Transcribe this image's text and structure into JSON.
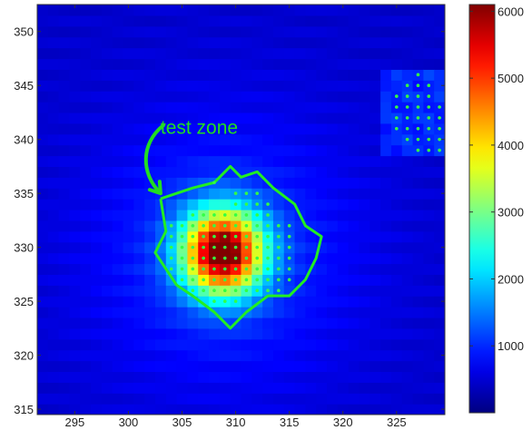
{
  "chart_data": {
    "type": "heatmap",
    "title": "",
    "xlabel": "",
    "ylabel": "",
    "xlim": [
      291.5,
      329.5
    ],
    "ylim": [
      314.5,
      352.5
    ],
    "x_ticks": [
      295,
      300,
      305,
      310,
      315,
      320,
      325
    ],
    "y_ticks": [
      315,
      320,
      325,
      330,
      335,
      340,
      345,
      350
    ],
    "colormap": "jet",
    "colorbar": {
      "range": [
        0,
        6100
      ],
      "ticks": [
        1000,
        2000,
        3000,
        4000,
        5000,
        6000
      ]
    },
    "background_value": 450,
    "hotspot": {
      "center": [
        308.8,
        329.6
      ],
      "peak_value": 6000,
      "sigma": [
        2.6,
        2.7
      ],
      "halo_value": 650,
      "halo_sigma": [
        9,
        9
      ]
    },
    "secondary_patch": {
      "x_range": [
        324,
        329
      ],
      "y_range": [
        339,
        346
      ],
      "value": 1000
    },
    "marked_points": [
      {
        "x": 308,
        "y": 336,
        "count": 1
      },
      {
        "x": 310,
        "y": 335,
        "count": 3
      },
      {
        "x": 310,
        "y": 334,
        "count": 4
      },
      {
        "x": 306,
        "y": 333,
        "count": 8
      },
      {
        "x": 304,
        "y": 332,
        "count": 12
      },
      {
        "x": 304,
        "y": 331,
        "count": 12
      },
      {
        "x": 304,
        "y": 330,
        "count": 12
      },
      {
        "x": 304,
        "y": 329,
        "count": 12
      },
      {
        "x": 304,
        "y": 328,
        "count": 12
      },
      {
        "x": 305,
        "y": 327,
        "count": 11
      },
      {
        "x": 306,
        "y": 326,
        "count": 9
      },
      {
        "x": 308,
        "y": 325,
        "count": 3
      },
      {
        "x": 327,
        "y": 346,
        "count": 1
      },
      {
        "x": 326,
        "y": 345,
        "count": 3
      },
      {
        "x": 325,
        "y": 344,
        "count": 4
      },
      {
        "x": 325,
        "y": 343,
        "count": 5
      },
      {
        "x": 325,
        "y": 342,
        "count": 5
      },
      {
        "x": 325,
        "y": 341,
        "count": 5
      },
      {
        "x": 326,
        "y": 340,
        "count": 4
      },
      {
        "x": 327,
        "y": 339,
        "count": 3
      }
    ],
    "zone_boundary": [
      [
        303,
        334.5
      ],
      [
        306,
        335.5
      ],
      [
        308,
        336
      ],
      [
        309.5,
        337.5
      ],
      [
        310.5,
        336.5
      ],
      [
        312,
        337
      ],
      [
        313.5,
        335.5
      ],
      [
        315.5,
        334
      ],
      [
        316.5,
        332
      ],
      [
        318,
        331
      ],
      [
        317.5,
        329
      ],
      [
        316.5,
        327
      ],
      [
        315,
        325.5
      ],
      [
        313,
        325.5
      ],
      [
        311,
        324
      ],
      [
        309.5,
        322.5
      ],
      [
        308,
        324
      ],
      [
        306,
        325.5
      ],
      [
        304.5,
        326.5
      ],
      [
        303.5,
        328
      ],
      [
        302.5,
        329.5
      ],
      [
        303.5,
        331.5
      ],
      [
        303,
        334.5
      ]
    ],
    "boundary_color": "#22ee22",
    "point_color": "#33ff44",
    "annotation": {
      "text": "test zone",
      "color": "#22dd22",
      "text_at": [
        303,
        340.5
      ],
      "arrow_tip": [
        303,
        335
      ]
    }
  }
}
